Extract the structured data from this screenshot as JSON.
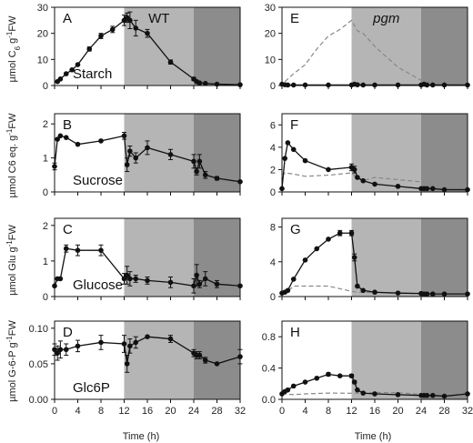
{
  "figure": {
    "xlabel": "Time (h)",
    "x_ticks": [
      0,
      4,
      8,
      12,
      16,
      20,
      24,
      28,
      32
    ],
    "ylabels": [
      {
        "main": "µmol C",
        "sub": "6",
        "rest": " g",
        "sup": "-1",
        "tail": "FW"
      },
      {
        "main": "µmol C6 eq. g",
        "sub": "",
        "rest": "",
        "sup": "-1",
        "tail": "FW"
      },
      {
        "main": "µmol Glu g",
        "sub": "",
        "rest": "",
        "sup": "-1",
        "tail": "FW"
      },
      {
        "main": "µmol G-6-P g",
        "sub": "",
        "rest": "",
        "sup": "-1",
        "tail": "FW"
      }
    ],
    "colors": {
      "light": "#ffffff",
      "dim": "#b5b5b5",
      "dark": "#8c8c8c",
      "line": "#111111",
      "ref": "#888888"
    },
    "phases": [
      {
        "name": "light",
        "from": 0,
        "to": 12
      },
      {
        "name": "dim",
        "from": 12,
        "to": 24
      },
      {
        "name": "dark",
        "from": 24,
        "to": 32
      }
    ]
  },
  "chart_data": [
    {
      "type": "line",
      "panel": "A",
      "label": "Starch",
      "genotype": "WT",
      "genotype_italic": false,
      "ylim": [
        0,
        30
      ],
      "yticks": [
        0,
        10,
        20,
        30
      ],
      "xlim": [
        0,
        32
      ],
      "series": [
        {
          "x": [
            0.5,
            1,
            2,
            3,
            4,
            6,
            8,
            10,
            12,
            12.5,
            13,
            14,
            16,
            20,
            24,
            24.5,
            25,
            26,
            28,
            32
          ],
          "y": [
            1.5,
            2.5,
            4.5,
            6,
            8,
            14,
            19,
            21.5,
            25,
            26,
            25,
            22,
            20,
            9,
            2.5,
            1.5,
            1,
            0.8,
            0.5,
            0.3
          ],
          "err": [
            0,
            0,
            0,
            0,
            0,
            0.8,
            1,
            1.2,
            2,
            1.8,
            3.2,
            3,
            1.5,
            0.8,
            0.6,
            0,
            0,
            0,
            0,
            0
          ]
        }
      ]
    },
    {
      "type": "line",
      "panel": "E",
      "label": "",
      "genotype": "pgm",
      "genotype_italic": true,
      "ylim": [
        0,
        30
      ],
      "yticks": [
        0,
        10,
        20,
        30
      ],
      "xlim": [
        0,
        32
      ],
      "series": [
        {
          "x": [
            0,
            0.5,
            1,
            2,
            4,
            8,
            12,
            12.5,
            13,
            14,
            16,
            20,
            24,
            24.5,
            25,
            26,
            28,
            32
          ],
          "y": [
            0.5,
            0.3,
            0.2,
            0.2,
            0.2,
            0.2,
            0.2,
            0.5,
            0.3,
            0.2,
            0.2,
            0.2,
            0.2,
            0.5,
            0.2,
            0.2,
            0.2,
            0.2
          ],
          "err": []
        }
      ],
      "reference": {
        "x": [
          0.5,
          2,
          4,
          6,
          8,
          10,
          12,
          13,
          14,
          16,
          20,
          24,
          24.5,
          25,
          26,
          28,
          32
        ],
        "y": [
          1.5,
          4.5,
          8,
          14,
          19,
          21.5,
          25,
          21,
          20,
          15,
          7,
          2,
          1,
          0.6,
          0.5,
          0.4,
          0.3
        ]
      }
    },
    {
      "type": "line",
      "panel": "B",
      "label": "Sucrose",
      "genotype": "",
      "genotype_italic": false,
      "ylim": [
        0,
        2.3
      ],
      "yticks": [
        0,
        1,
        2
      ],
      "xlim": [
        0,
        32
      ],
      "series": [
        {
          "x": [
            0,
            0.5,
            1,
            2,
            4,
            8,
            12,
            12.5,
            13,
            14,
            16,
            20,
            24,
            24.5,
            25,
            26,
            28,
            32
          ],
          "y": [
            0.75,
            1.55,
            1.65,
            1.6,
            1.4,
            1.5,
            1.65,
            0.8,
            1.2,
            1.0,
            1.3,
            1.1,
            0.9,
            0.6,
            0.9,
            0.5,
            0.4,
            0.3
          ],
          "err": [
            0.1,
            0,
            0,
            0,
            0,
            0,
            0.1,
            0.2,
            0.15,
            0.15,
            0.2,
            0.15,
            0.2,
            0.1,
            0.2,
            0.1,
            0.05,
            0
          ]
        }
      ]
    },
    {
      "type": "line",
      "panel": "F",
      "label": "",
      "genotype": "",
      "genotype_italic": false,
      "ylim": [
        0,
        7
      ],
      "yticks": [
        0,
        2,
        4,
        6
      ],
      "xlim": [
        0,
        32
      ],
      "series": [
        {
          "x": [
            0,
            0.5,
            1,
            2,
            4,
            8,
            12,
            12.5,
            13,
            14,
            16,
            20,
            24,
            24.5,
            25,
            26,
            28,
            32
          ],
          "y": [
            0.3,
            3.0,
            4.4,
            3.8,
            2.8,
            2.0,
            2.2,
            2.0,
            1.3,
            1.0,
            0.7,
            0.5,
            0.3,
            0.3,
            0.3,
            0.3,
            0.2,
            0.2
          ],
          "err": [
            0,
            0,
            0,
            0,
            0,
            0,
            0.3,
            0.3,
            0,
            0,
            0,
            0,
            0,
            0,
            0,
            0,
            0,
            0
          ]
        }
      ],
      "reference": {
        "x": [
          0,
          0.5,
          2,
          4,
          8,
          12,
          13,
          14,
          16,
          20,
          24,
          28,
          32
        ],
        "y": [
          1.4,
          1.7,
          1.6,
          1.4,
          1.5,
          1.7,
          1.2,
          1.0,
          1.3,
          1.1,
          0.9,
          0.4,
          0.3
        ]
      }
    },
    {
      "type": "line",
      "panel": "C",
      "label": "Glucose",
      "genotype": "",
      "genotype_italic": false,
      "ylim": [
        0,
        2.2
      ],
      "yticks": [
        0,
        1,
        2
      ],
      "xlim": [
        0,
        32
      ],
      "series": [
        {
          "x": [
            0,
            0.5,
            1,
            2,
            4,
            8,
            12,
            12.5,
            13,
            14,
            16,
            20,
            24,
            24.5,
            25,
            26,
            28,
            32
          ],
          "y": [
            0.3,
            0.5,
            0.5,
            1.35,
            1.3,
            1.3,
            0.5,
            0.6,
            0.5,
            0.5,
            0.45,
            0.4,
            0.3,
            0.6,
            0.35,
            0.5,
            0.35,
            0.3
          ],
          "err": [
            0,
            0,
            0,
            0.1,
            0.15,
            0.15,
            0.15,
            0.25,
            0.2,
            0.1,
            0.1,
            0.15,
            0.2,
            0.3,
            0.1,
            0.2,
            0.1,
            0
          ]
        }
      ]
    },
    {
      "type": "line",
      "panel": "G",
      "label": "",
      "genotype": "",
      "genotype_italic": false,
      "ylim": [
        0,
        9
      ],
      "yticks": [
        0,
        4,
        8
      ],
      "xlim": [
        0,
        32
      ],
      "series": [
        {
          "x": [
            0,
            0.5,
            1,
            2,
            4,
            6,
            8,
            10,
            12,
            12.5,
            13,
            14,
            16,
            20,
            24,
            24.5,
            25,
            26,
            28,
            32
          ],
          "y": [
            0.4,
            0.5,
            0.7,
            2.0,
            4.2,
            5.5,
            6.6,
            7.3,
            7.3,
            4.5,
            1.2,
            0.7,
            0.5,
            0.4,
            0.35,
            0.3,
            0.3,
            0.3,
            0.3,
            0.3
          ],
          "err": [
            0,
            0,
            0,
            0,
            0,
            0,
            0,
            0.3,
            0.3,
            0.4,
            0,
            0,
            0,
            0,
            0,
            0,
            0,
            0,
            0,
            0
          ]
        }
      ],
      "reference": {
        "x": [
          0,
          1,
          2,
          4,
          8,
          12,
          13,
          14,
          16,
          20,
          24,
          28,
          32
        ],
        "y": [
          0.4,
          0.6,
          1.2,
          1.2,
          1.2,
          0.6,
          0.5,
          0.5,
          0.45,
          0.4,
          0.3,
          0.3,
          0.3
        ]
      }
    },
    {
      "type": "line",
      "panel": "D",
      "label": "Glc6P",
      "genotype": "",
      "genotype_italic": false,
      "ylim": [
        0,
        0.11
      ],
      "yticks": [
        0,
        0.05,
        0.1
      ],
      "xlim": [
        0,
        32
      ],
      "series": [
        {
          "x": [
            0,
            0.5,
            1,
            2,
            4,
            8,
            12,
            12.5,
            13,
            14,
            16,
            20,
            24,
            24.5,
            25,
            26,
            28,
            32
          ],
          "y": [
            0.07,
            0.065,
            0.07,
            0.07,
            0.075,
            0.08,
            0.078,
            0.05,
            0.075,
            0.08,
            0.088,
            0.085,
            0.065,
            0.062,
            0.062,
            0.055,
            0.05,
            0.06
          ],
          "err": [
            0.008,
            0.01,
            0.012,
            0.008,
            0.008,
            0.01,
            0.012,
            0.012,
            0.01,
            0.008,
            0,
            0.005,
            0.005,
            0.005,
            0.005,
            0.004,
            0,
            0.01
          ]
        }
      ]
    },
    {
      "type": "line",
      "panel": "H",
      "label": "",
      "genotype": "",
      "genotype_italic": false,
      "ylim": [
        0,
        1
      ],
      "yticks": [
        0,
        0.4,
        0.8
      ],
      "xlim": [
        0,
        32
      ],
      "series": [
        {
          "x": [
            0,
            0.5,
            1,
            2,
            4,
            6,
            8,
            10,
            12,
            12.5,
            13,
            14,
            16,
            20,
            24,
            24.5,
            25,
            26,
            28,
            32
          ],
          "y": [
            0.07,
            0.1,
            0.12,
            0.17,
            0.22,
            0.27,
            0.32,
            0.3,
            0.3,
            0.22,
            0.12,
            0.08,
            0.07,
            0.06,
            0.05,
            0.05,
            0.05,
            0.05,
            0.04,
            0.07
          ],
          "err": [
            0,
            0,
            0,
            0,
            0,
            0,
            0.02,
            0,
            0.02,
            0.02,
            0,
            0,
            0,
            0,
            0,
            0,
            0,
            0,
            0,
            0
          ]
        }
      ],
      "reference": {
        "x": [
          0,
          2,
          4,
          8,
          12,
          14,
          16,
          20,
          24,
          28,
          32
        ],
        "y": [
          0.07,
          0.06,
          0.07,
          0.08,
          0.078,
          0.08,
          0.088,
          0.085,
          0.065,
          0.05,
          0.06
        ]
      }
    }
  ]
}
